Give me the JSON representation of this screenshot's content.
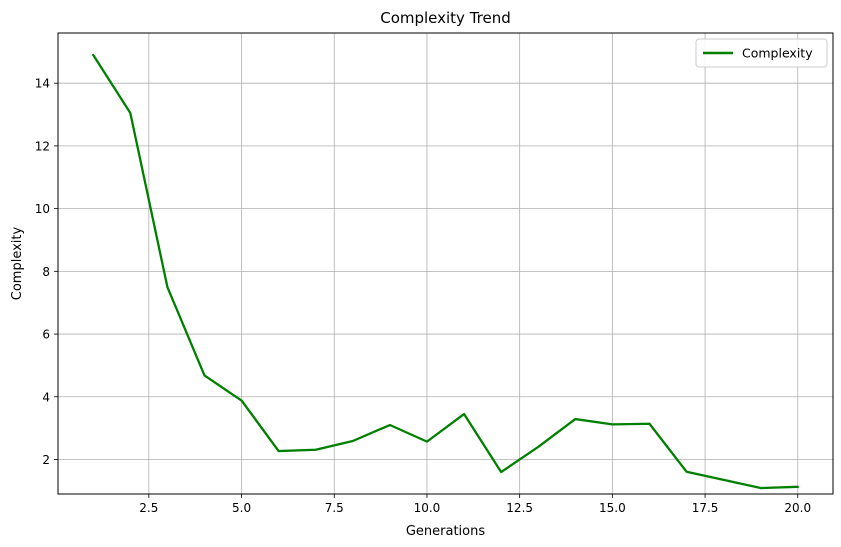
{
  "chart_data": {
    "type": "line",
    "title": "Complexity Trend",
    "xlabel": "Generations",
    "ylabel": "Complexity",
    "xlim": [
      0.05,
      20.95
    ],
    "ylim": [
      0.9,
      15.6
    ],
    "x_ticks": [
      2.5,
      5.0,
      7.5,
      10.0,
      12.5,
      15.0,
      17.5,
      20.0
    ],
    "x_tick_labels": [
      "2.5",
      "5.0",
      "7.5",
      "10.0",
      "12.5",
      "15.0",
      "17.5",
      "20.0"
    ],
    "y_ticks": [
      2,
      4,
      6,
      8,
      10,
      12,
      14
    ],
    "y_tick_labels": [
      "2",
      "4",
      "6",
      "8",
      "10",
      "12",
      "14"
    ],
    "grid": true,
    "legend_position": "top-right",
    "series": [
      {
        "name": "Complexity",
        "color": "#008000",
        "x": [
          1,
          2,
          3,
          4,
          5,
          6,
          7,
          8,
          9,
          10,
          11,
          12,
          13,
          14,
          15,
          16,
          17,
          18,
          19,
          20
        ],
        "y": [
          14.9,
          13.05,
          7.5,
          4.68,
          3.88,
          2.27,
          2.31,
          2.59,
          3.1,
          2.57,
          3.45,
          1.6,
          2.4,
          3.29,
          3.12,
          3.14,
          1.61,
          1.35,
          1.09,
          1.13
        ]
      }
    ]
  }
}
